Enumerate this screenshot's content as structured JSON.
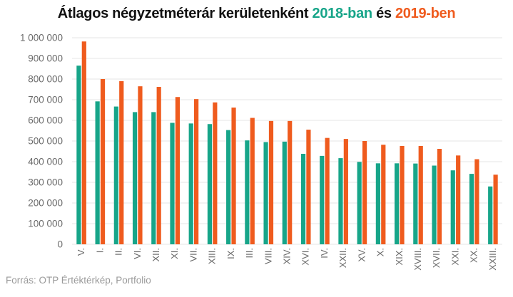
{
  "title": {
    "prefix": "Átlagos négyzetméterár kerületenként ",
    "year1": "2018-ban",
    "middle": " és ",
    "year2": "2019-ben"
  },
  "source": "Forrás: OTP Értéktérkép, Portfolio",
  "colors": {
    "series_2018": "#17a589",
    "series_2019": "#ef5b1e",
    "grid": "#e6e6e6",
    "axis_text": "#6a6a6a"
  },
  "chart_data": {
    "type": "bar",
    "categories": [
      "V.",
      "I.",
      "II.",
      "VI.",
      "XII.",
      "XI.",
      "VII.",
      "XIII.",
      "IX.",
      "III.",
      "VIII.",
      "XIV.",
      "XVI.",
      "IV.",
      "XXII.",
      "XV.",
      "X.",
      "XIX.",
      "XVIII.",
      "XVII.",
      "XXI.",
      "XX.",
      "XXIII."
    ],
    "series": [
      {
        "values": [
          865000,
          692000,
          667000,
          640000,
          640000,
          588000,
          585000,
          582000,
          553000,
          503000,
          495000,
          497000,
          438000,
          428000,
          417000,
          399000,
          392000,
          392000,
          391000,
          381000,
          358000,
          341000,
          280000
        ]
      },
      {
        "values": [
          982000,
          800000,
          790000,
          765000,
          762000,
          713000,
          703000,
          687000,
          662000,
          612000,
          597000,
          597000,
          555000,
          515000,
          510000,
          500000,
          482000,
          476000,
          476000,
          462000,
          430000,
          412000,
          337000
        ]
      }
    ],
    "y_ticks": [
      "0",
      "100 000",
      "200 000",
      "300 000",
      "400 000",
      "500 000",
      "600 000",
      "700 000",
      "800 000",
      "900 000",
      "1 000 000"
    ],
    "ylim": [
      0,
      1000000
    ],
    "grid": true,
    "legend": "in title"
  }
}
